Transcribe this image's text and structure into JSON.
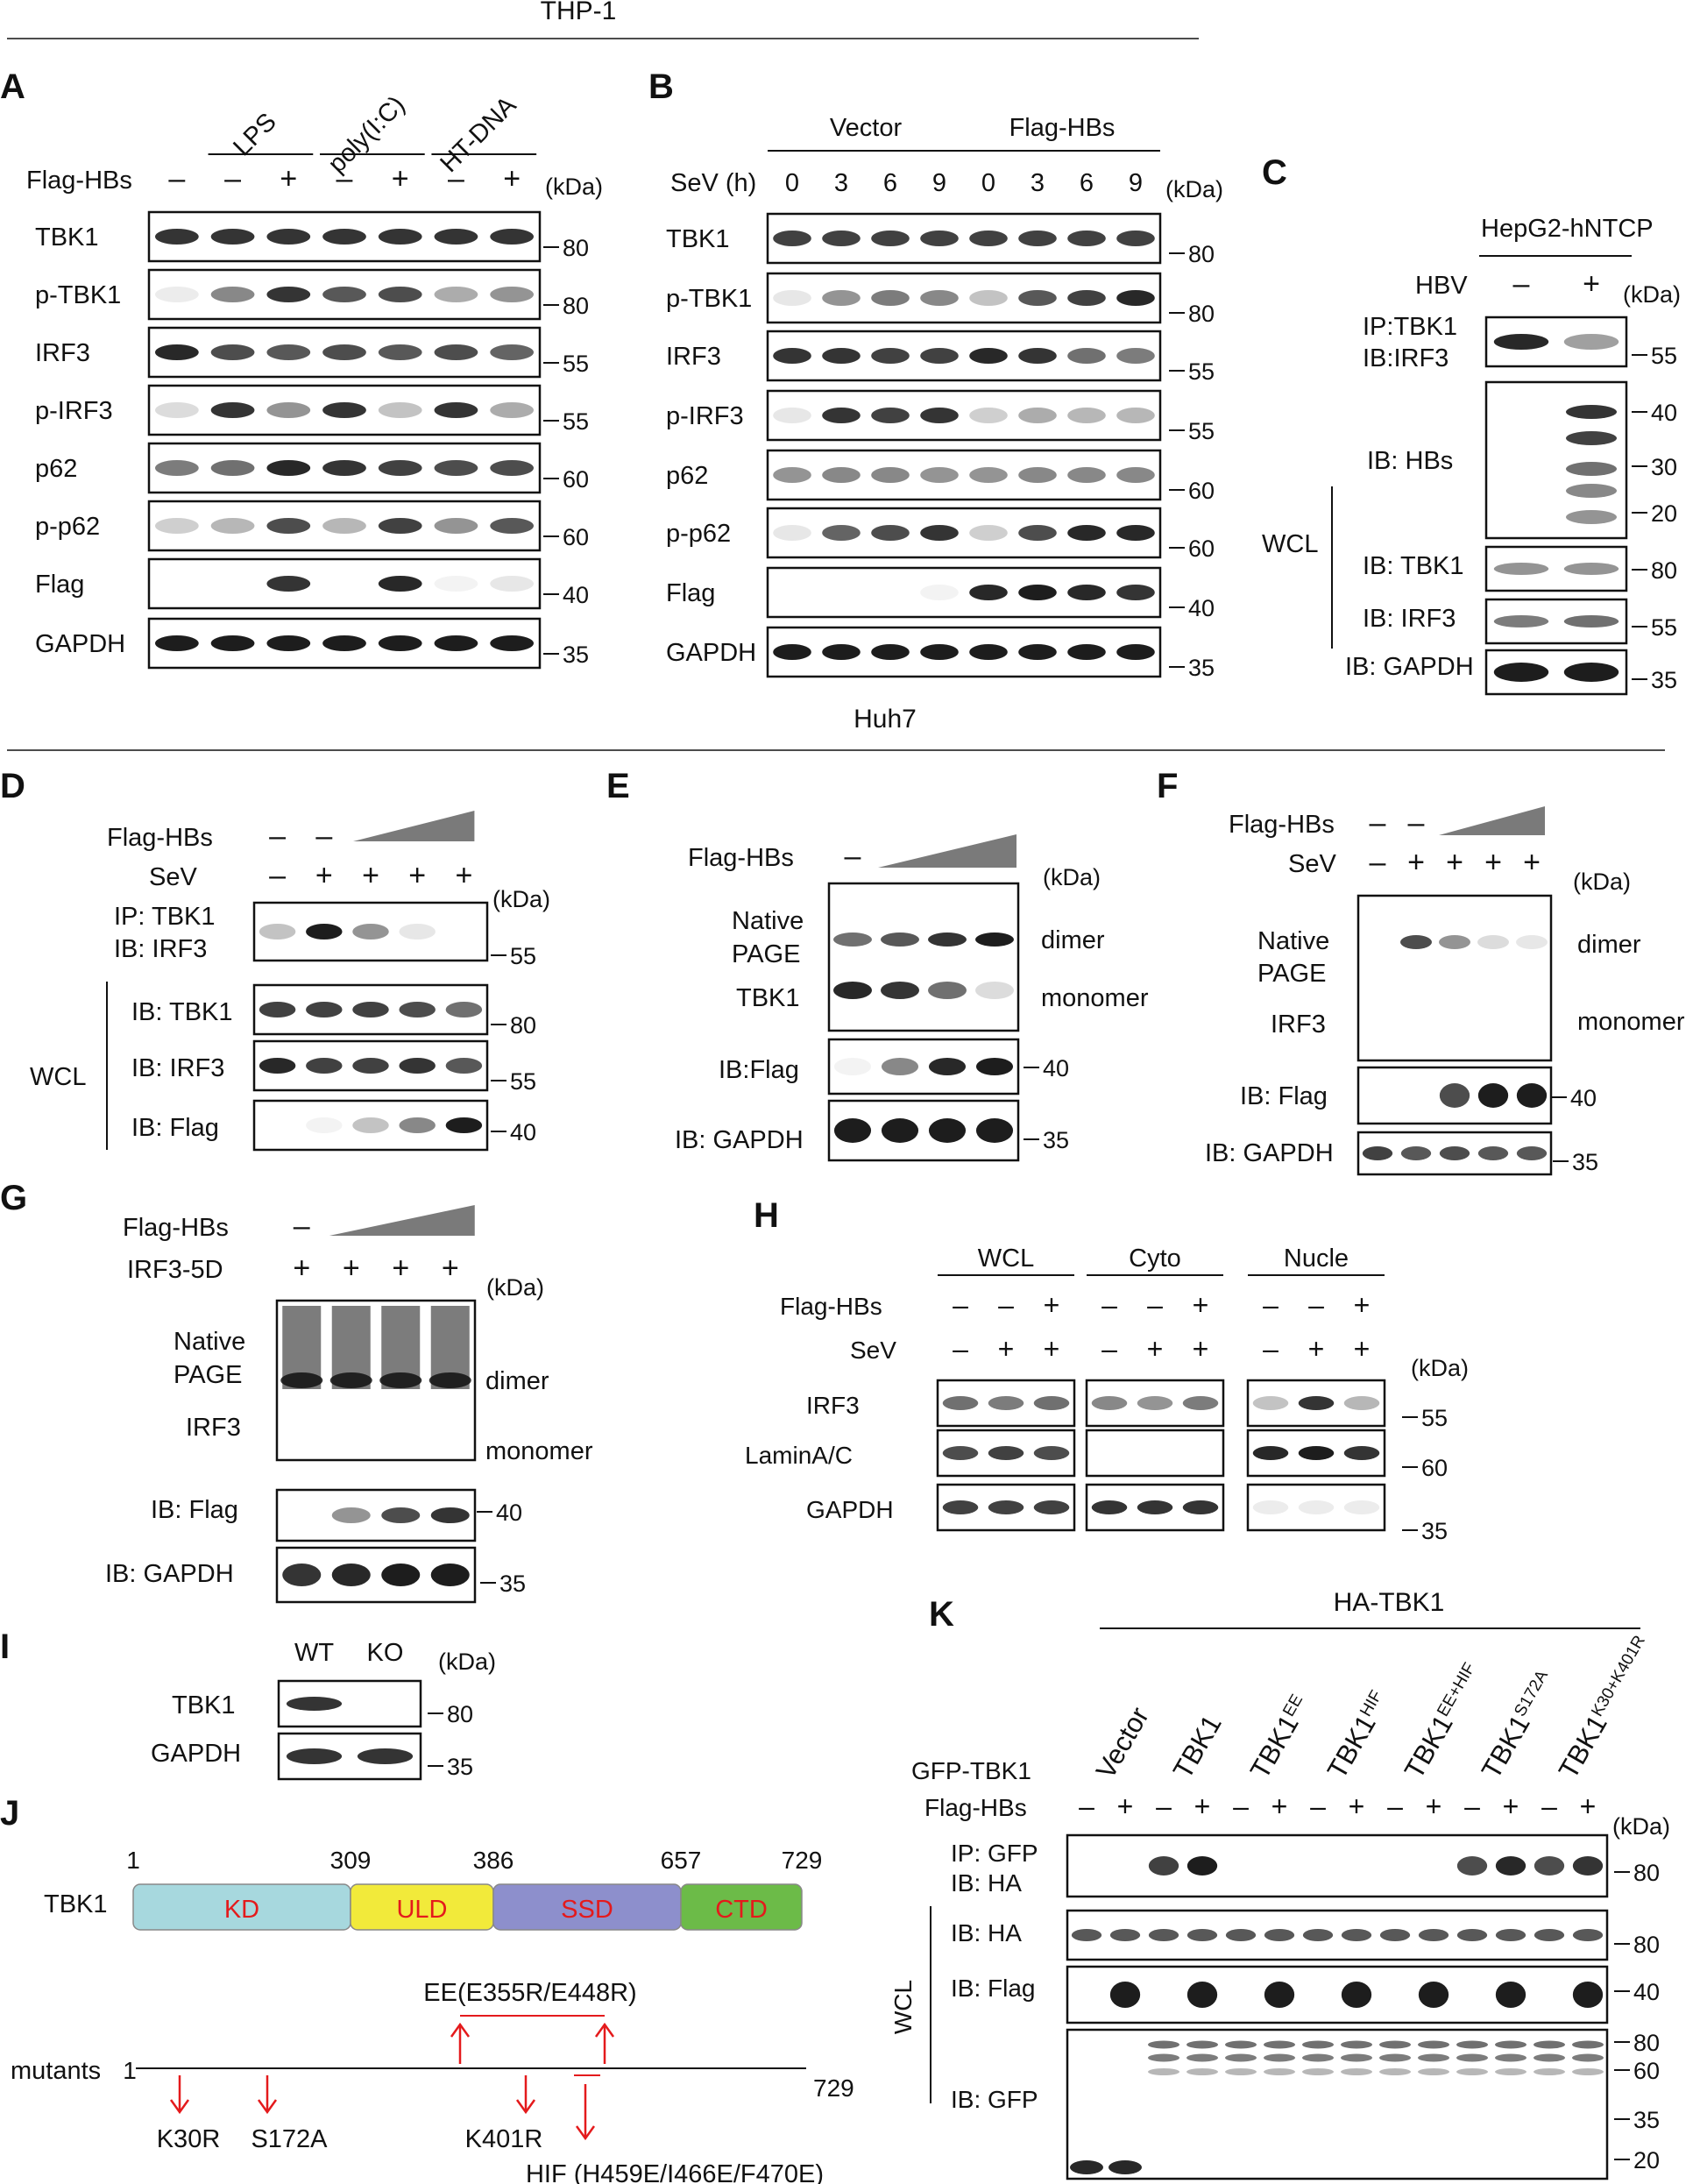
{
  "section_titles": {
    "thp1": "THP-1",
    "huh7": "Huh7"
  },
  "panel_letters": [
    "A",
    "B",
    "C",
    "D",
    "E",
    "F",
    "G",
    "H",
    "I",
    "J",
    "K"
  ],
  "common": {
    "kda": "(kDa)",
    "minus": "–",
    "plus": "+"
  },
  "panelA": {
    "treatments": [
      "LPS",
      "poly(I:C)",
      "HT-DNA"
    ],
    "flag_label": "Flag-HBs",
    "flag_signs": [
      "–",
      "–",
      "+",
      "–",
      "+",
      "–",
      "+"
    ],
    "rows": [
      "TBK1",
      "p-TBK1",
      "IRF3",
      "p-IRF3",
      "p62",
      "p-p62",
      "Flag",
      "GAPDH"
    ],
    "markers": [
      "80",
      "80",
      "55",
      "55",
      "60",
      "60",
      "40",
      "35"
    ]
  },
  "panelB": {
    "groups": [
      "Vector",
      "Flag-HBs"
    ],
    "sev_label": "SeV (h)",
    "times": [
      "0",
      "3",
      "6",
      "9",
      "0",
      "3",
      "6",
      "9"
    ],
    "rows": [
      "TBK1",
      "p-TBK1",
      "IRF3",
      "p-IRF3",
      "p62",
      "p-p62",
      "Flag",
      "GAPDH"
    ],
    "markers": [
      "80",
      "80",
      "55",
      "55",
      "60",
      "60",
      "40",
      "35"
    ]
  },
  "panelC": {
    "cell_line": "HepG2-hNTCP",
    "hbv_label": "HBV",
    "hbv_signs": [
      "–",
      "+"
    ],
    "ip_label": "IP:TBK1",
    "ib_irf3": "IB:IRF3",
    "ib_hbs": "IB: HBs",
    "ib_tbk1": "IB: TBK1",
    "ib_irf3_wcl": "IB: IRF3",
    "ib_gapdh": "IB: GAPDH",
    "wcl": "WCL",
    "markers": [
      "55",
      "40",
      "30",
      "20",
      "80",
      "55",
      "35"
    ]
  },
  "panelD": {
    "flag_label": "Flag-HBs",
    "flag_signs": [
      "–",
      "–"
    ],
    "sev_label": "SeV",
    "sev_signs": [
      "–",
      "+",
      "+",
      "+",
      "+"
    ],
    "ip_label": "IP: TBK1",
    "ib_irf3": "IB: IRF3",
    "wcl_rows": [
      "IB: TBK1",
      "IB: IRF3",
      "IB: Flag"
    ],
    "wcl": "WCL",
    "markers": [
      "55",
      "80",
      "55",
      "40"
    ]
  },
  "panelE": {
    "flag_label": "Flag-HBs",
    "flag_signs": [
      "–"
    ],
    "native1": "Native",
    "native2": "PAGE",
    "protein": "TBK1",
    "dimer": "dimer",
    "monomer": "monomer",
    "ib_flag": "IB:Flag",
    "ib_gapdh": "IB: GAPDH",
    "markers": [
      "40",
      "35"
    ]
  },
  "panelF": {
    "flag_label": "Flag-HBs",
    "flag_signs": [
      "–",
      "–"
    ],
    "sev_label": "SeV",
    "sev_signs": [
      "–",
      "+",
      "+",
      "+",
      "+"
    ],
    "native1": "Native",
    "native2": "PAGE",
    "protein": "IRF3",
    "dimer": "dimer",
    "monomer": "monomer",
    "ib_flag": "IB: Flag",
    "ib_gapdh": "IB: GAPDH",
    "markers": [
      "40",
      "35"
    ]
  },
  "panelG": {
    "flag_label": "Flag-HBs",
    "flag_signs": [
      "–"
    ],
    "irf_label": "IRF3-5D",
    "irf_signs": [
      "+",
      "+",
      "+",
      "+"
    ],
    "native1": "Native",
    "native2": "PAGE",
    "protein": "IRF3",
    "dimer": "dimer",
    "monomer": "monomer",
    "ib_flag": "IB: Flag",
    "ib_gapdh": "IB: GAPDH",
    "markers": [
      "40",
      "35"
    ]
  },
  "panelH": {
    "fractions": [
      "WCL",
      "Cyto",
      "Nucle"
    ],
    "flag_label": "Flag-HBs",
    "sev_label": "SeV",
    "flag_signs": [
      "–",
      "–",
      "+",
      "–",
      "–",
      "+",
      "–",
      "–",
      "+"
    ],
    "sev_signs": [
      "–",
      "+",
      "+",
      "–",
      "+",
      "+",
      "–",
      "+",
      "+"
    ],
    "rows": [
      "IRF3",
      "LaminA/C",
      "GAPDH"
    ],
    "markers": [
      "55",
      "60",
      "35"
    ]
  },
  "panelI": {
    "lanes": [
      "WT",
      "KO"
    ],
    "rows": [
      "TBK1",
      "GAPDH"
    ],
    "markers": [
      "80",
      "35"
    ]
  },
  "panelJ": {
    "protein": "TBK1",
    "positions": [
      "1",
      "309",
      "386",
      "657",
      "729"
    ],
    "domains": [
      "KD",
      "ULD",
      "SSD",
      "CTD"
    ],
    "domain_colors": [
      "#a7d8de",
      "#f2ea3a",
      "#8d8fcc",
      "#6cbb48"
    ],
    "mutants_label": "mutants",
    "m_start": "1",
    "m_end": "729",
    "mutations": [
      "K30R",
      "S172A",
      "K401R"
    ],
    "ee": "EE(E355R/E448R)",
    "hif": "HIF (H459E/I466E/F470E)"
  },
  "panelK": {
    "title": "HA-TBK1",
    "constructs": [
      "Vector",
      "TBK1",
      "TBK1",
      "TBK1",
      "TBK1",
      "TBK1",
      "TBK1"
    ],
    "superscripts": [
      "",
      "",
      "EE",
      "HIF",
      "EE+HIF",
      "S172A",
      "K30+K401R"
    ],
    "gfp_label": "GFP-TBK1",
    "flag_label": "Flag-HBs",
    "flag_signs": [
      "–",
      "+",
      "–",
      "+",
      "–",
      "+",
      "–",
      "+",
      "–",
      "+",
      "–",
      "+",
      "–",
      "+"
    ],
    "ip_label": "IP: GFP",
    "ib_ha_ip": "IB: HA",
    "ib_ha": "IB: HA",
    "ib_flag": "IB: Flag",
    "ib_gfp": "IB: GFP",
    "wcl": "WCL",
    "markers": [
      "80",
      "80",
      "40",
      "80",
      "60",
      "35",
      "20"
    ]
  }
}
